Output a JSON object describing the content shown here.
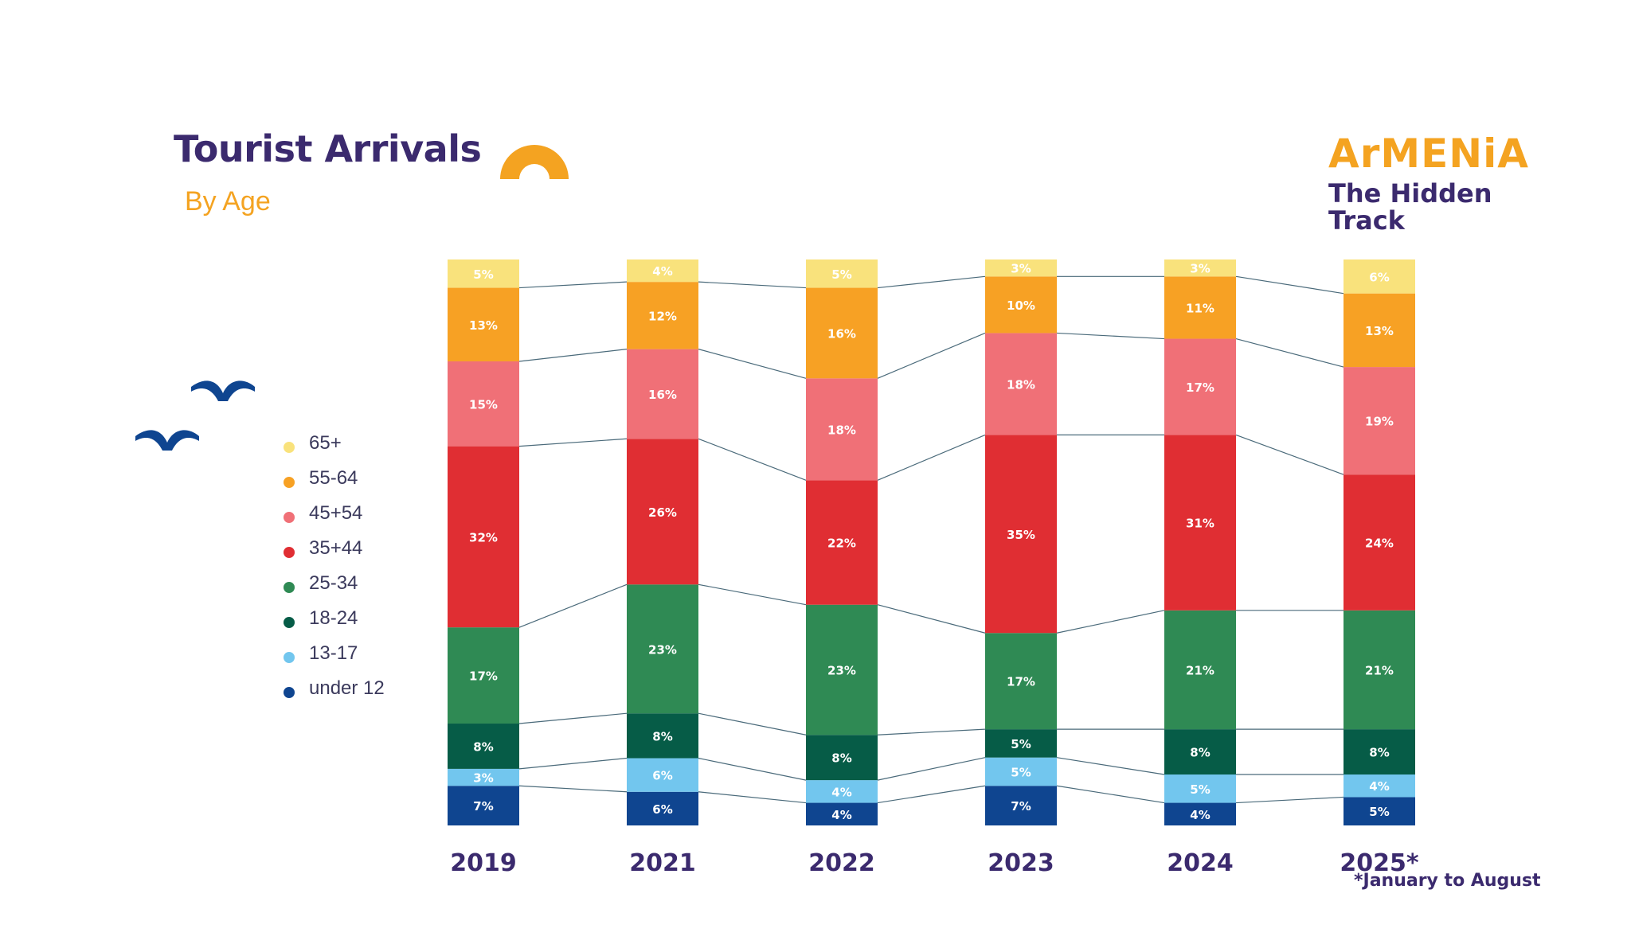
{
  "header": {
    "title": "Tourist Arrivals",
    "subtitle": "By Age"
  },
  "logo": {
    "wordmark": "ArMENiA",
    "tagline": "The Hidden Track"
  },
  "footnote": "*January to August",
  "colors": {
    "title": "#3b2a6e",
    "accent": "#f4a321",
    "connector": "#4a6a7a"
  },
  "decorations": [
    "orange-arch-shape",
    "blue-birds-icon"
  ],
  "chart_data": {
    "type": "bar",
    "stacked": true,
    "categories": [
      "2019",
      "2021",
      "2022",
      "2023",
      "2024",
      "2025*"
    ],
    "ylim": [
      0,
      100
    ],
    "unit": "%",
    "legend_position": "left",
    "series": [
      {
        "name": "under 12",
        "color": "#0f4590",
        "label_color": "#ffffff",
        "values": [
          7,
          6,
          4,
          7,
          4,
          5
        ]
      },
      {
        "name": "13-17",
        "color": "#72c6ee",
        "label_color": "#ffffff",
        "values": [
          3,
          6,
          4,
          5,
          5,
          4
        ]
      },
      {
        "name": "18-24",
        "color": "#065c47",
        "label_color": "#ffffff",
        "values": [
          8,
          8,
          8,
          5,
          8,
          8
        ]
      },
      {
        "name": "25-34",
        "color": "#2f8a54",
        "label_color": "#ffffff",
        "values": [
          17,
          23,
          23,
          17,
          21,
          21
        ]
      },
      {
        "name": "35+44",
        "color": "#e02e33",
        "label_color": "#ffffff",
        "values": [
          32,
          26,
          22,
          35,
          31,
          24
        ]
      },
      {
        "name": "45+54",
        "color": "#f07077",
        "label_color": "#ffffff",
        "values": [
          15,
          16,
          18,
          18,
          17,
          19
        ]
      },
      {
        "name": "55-64",
        "color": "#f7a124",
        "label_color": "#ffffff",
        "values": [
          13,
          12,
          16,
          10,
          11,
          13
        ]
      },
      {
        "name": "65+",
        "color": "#f9e27c",
        "label_color": "#ffffff",
        "values": [
          5,
          4,
          5,
          3,
          3,
          6
        ]
      }
    ]
  }
}
